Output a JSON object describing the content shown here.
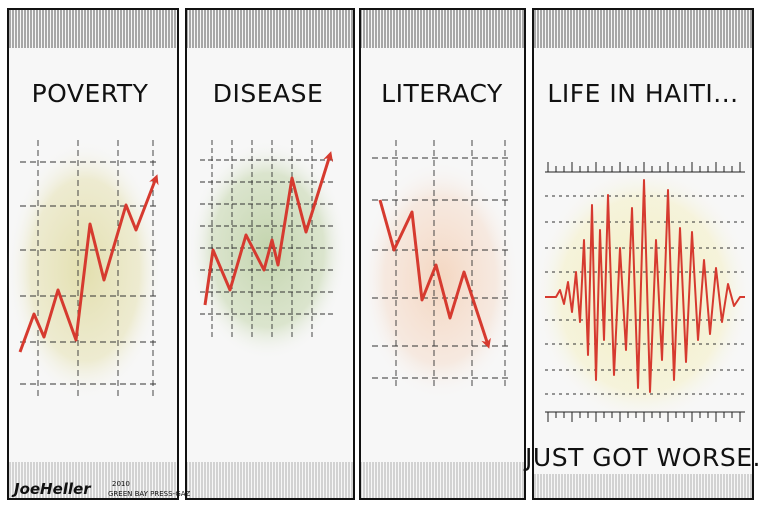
{
  "cartoon": {
    "panels": [
      {
        "caption": "POVERTY",
        "trend": "up",
        "line_color": "#d63a2f",
        "bg_tint": "#e7e4b8"
      },
      {
        "caption": "DISEASE",
        "trend": "up",
        "line_color": "#d63a2f",
        "bg_tint": "#cfdcbc"
      },
      {
        "caption": "LITERACY",
        "trend": "down",
        "line_color": "#d63a2f",
        "bg_tint": "#f3dccb"
      },
      {
        "caption": "LIFE IN HAITI...",
        "trend": "seismograph",
        "line_color": "#d63a2f",
        "bg_tint": "#f1eec6"
      }
    ],
    "punchline": "JUST GOT WORSE.",
    "signature": "JoeHeller",
    "signature_year": "2010",
    "signature_credit": "GREEN BAY PRESS-GAZ"
  },
  "colors": {
    "ink": "#111111",
    "panel_fill": "#f7f7f7",
    "accent_red": "#d63a2f"
  }
}
